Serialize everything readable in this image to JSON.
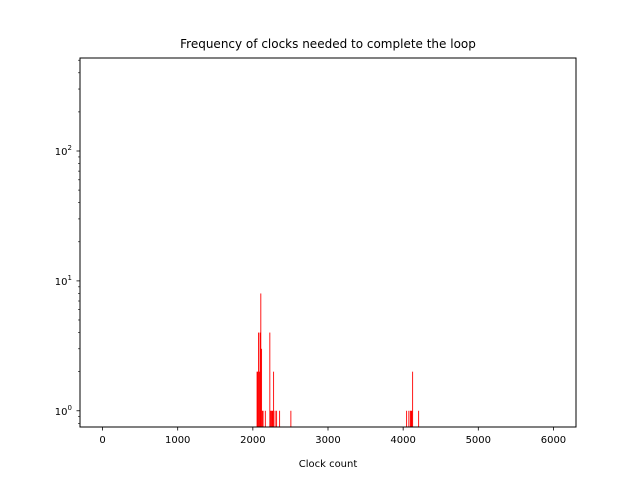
{
  "chart_data": {
    "type": "bar",
    "title": "Frequency of clocks needed to complete the loop",
    "xlabel": "Clock count",
    "ylabel": "",
    "xlim": [
      -300,
      6300
    ],
    "ylim": [
      0.75,
      520
    ],
    "yscale": "log",
    "grid": false,
    "legend": "none",
    "bar_color": "#ff0000",
    "xticks": [
      {
        "value": 0,
        "label": "0"
      },
      {
        "value": 1000,
        "label": "1000"
      },
      {
        "value": 2000,
        "label": "2000"
      },
      {
        "value": 3000,
        "label": "3000"
      },
      {
        "value": 4000,
        "label": "4000"
      },
      {
        "value": 5000,
        "label": "5000"
      },
      {
        "value": 6000,
        "label": "6000"
      }
    ],
    "yticks": [
      {
        "value": 1,
        "base": "10",
        "exp": "0"
      },
      {
        "value": 10,
        "base": "10",
        "exp": "1"
      },
      {
        "value": 100,
        "base": "10",
        "exp": "2"
      }
    ],
    "bar_width": 10,
    "points": [
      {
        "x": 2050,
        "y": 2
      },
      {
        "x": 2060,
        "y": 2
      },
      {
        "x": 2070,
        "y": 4
      },
      {
        "x": 2080,
        "y": 2
      },
      {
        "x": 2090,
        "y": 4
      },
      {
        "x": 2100,
        "y": 8
      },
      {
        "x": 2110,
        "y": 3
      },
      {
        "x": 2120,
        "y": 1
      },
      {
        "x": 2130,
        "y": 1
      },
      {
        "x": 2160,
        "y": 1
      },
      {
        "x": 2220,
        "y": 4
      },
      {
        "x": 2230,
        "y": 1
      },
      {
        "x": 2240,
        "y": 1
      },
      {
        "x": 2250,
        "y": 1
      },
      {
        "x": 2260,
        "y": 1
      },
      {
        "x": 2270,
        "y": 2
      },
      {
        "x": 2290,
        "y": 1
      },
      {
        "x": 2310,
        "y": 1
      },
      {
        "x": 2350,
        "y": 1
      },
      {
        "x": 2500,
        "y": 1
      },
      {
        "x": 4040,
        "y": 1
      },
      {
        "x": 4070,
        "y": 1
      },
      {
        "x": 4090,
        "y": 1
      },
      {
        "x": 4100,
        "y": 1
      },
      {
        "x": 4110,
        "y": 1
      },
      {
        "x": 4120,
        "y": 2
      },
      {
        "x": 4200,
        "y": 1
      }
    ]
  }
}
